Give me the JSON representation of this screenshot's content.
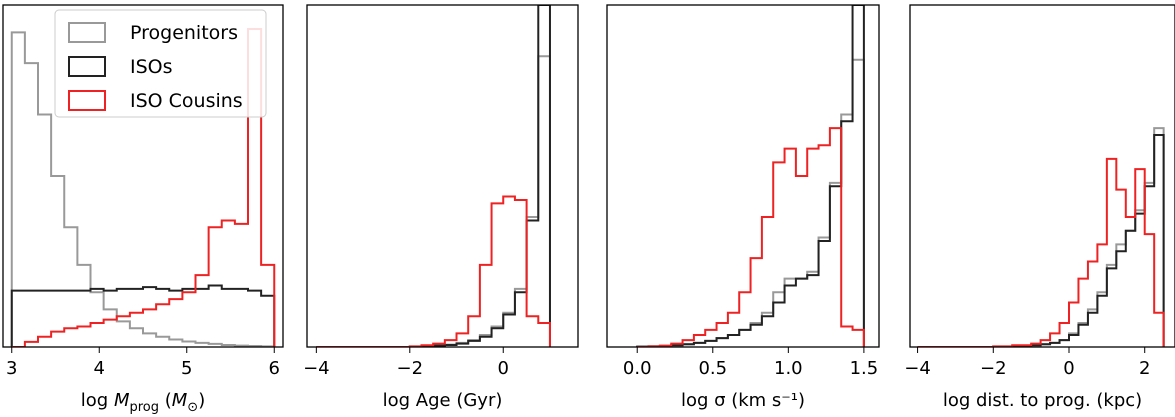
{
  "colors": {
    "progenitors": "#999999",
    "isos": "#222222",
    "cousins": "#ee2222"
  },
  "legend": {
    "entries": [
      {
        "label": "Progenitors",
        "color_key": "progenitors"
      },
      {
        "label": "ISOs",
        "color_key": "isos"
      },
      {
        "label": "ISO Cousins",
        "color_key": "cousins"
      }
    ]
  },
  "chart_data": [
    {
      "type": "histogram",
      "xlabel": "log M_prog (M_⊙)",
      "xlim": [
        2.9,
        6.1
      ],
      "ylim": [
        0,
        1.0
      ],
      "xticks": [
        3,
        4,
        5,
        6
      ],
      "y_ticks_shown": false,
      "series": [
        {
          "name": "Progenitors",
          "color_key": "progenitors",
          "edges": [
            3.0,
            3.15,
            3.3,
            3.45,
            3.6,
            3.75,
            3.9,
            4.05,
            4.2,
            4.35,
            4.5,
            4.65,
            4.8,
            4.95,
            5.1,
            5.25,
            5.4,
            5.55,
            5.7,
            5.85,
            6.0
          ],
          "values": [
            0.92,
            0.83,
            0.68,
            0.5,
            0.35,
            0.24,
            0.16,
            0.11,
            0.075,
            0.055,
            0.04,
            0.03,
            0.022,
            0.016,
            0.012,
            0.009,
            0.006,
            0.004,
            0.003,
            0.002
          ]
        },
        {
          "name": "ISOs",
          "color_key": "isos",
          "edges": [
            3.0,
            3.15,
            3.3,
            3.45,
            3.6,
            3.75,
            3.9,
            4.05,
            4.2,
            4.35,
            4.5,
            4.65,
            4.8,
            4.95,
            5.1,
            5.25,
            5.4,
            5.55,
            5.7,
            5.85,
            6.0
          ],
          "values": [
            0.165,
            0.165,
            0.165,
            0.165,
            0.165,
            0.165,
            0.17,
            0.165,
            0.17,
            0.17,
            0.175,
            0.17,
            0.165,
            0.17,
            0.17,
            0.18,
            0.17,
            0.17,
            0.165,
            0.15
          ]
        },
        {
          "name": "ISO Cousins",
          "color_key": "cousins",
          "edges": [
            3.0,
            3.15,
            3.3,
            3.45,
            3.6,
            3.75,
            3.9,
            4.05,
            4.2,
            4.35,
            4.5,
            4.65,
            4.8,
            4.95,
            5.1,
            5.25,
            5.4,
            5.55,
            5.7,
            5.85,
            6.0
          ],
          "values": [
            0.0,
            0.015,
            0.03,
            0.045,
            0.055,
            0.06,
            0.07,
            0.08,
            0.09,
            0.1,
            0.11,
            0.125,
            0.14,
            0.16,
            0.21,
            0.35,
            0.37,
            0.36,
            0.93,
            0.24
          ]
        }
      ]
    },
    {
      "type": "histogram",
      "xlabel": "log Age (Gyr)",
      "xlim": [
        -4.2,
        1.6
      ],
      "ylim": [
        0,
        1.0
      ],
      "xticks": [
        -4,
        -2,
        0
      ],
      "y_ticks_shown": false,
      "series": [
        {
          "name": "Progenitors",
          "color_key": "progenitors",
          "edges": [
            -4.0,
            -3.75,
            -3.5,
            -3.25,
            -3.0,
            -2.75,
            -2.5,
            -2.25,
            -2.0,
            -1.75,
            -1.5,
            -1.25,
            -1.0,
            -0.75,
            -0.5,
            -0.25,
            0.0,
            0.25,
            0.5,
            0.75,
            1.0
          ],
          "values": [
            0,
            0,
            0,
            0,
            0,
            0,
            0,
            0,
            0.001,
            0.002,
            0.004,
            0.007,
            0.012,
            0.02,
            0.035,
            0.06,
            0.1,
            0.17,
            0.38,
            0.85
          ]
        },
        {
          "name": "ISOs",
          "color_key": "isos",
          "edges": [
            -4.0,
            -3.75,
            -3.5,
            -3.25,
            -3.0,
            -2.75,
            -2.5,
            -2.25,
            -2.0,
            -1.75,
            -1.5,
            -1.25,
            -1.0,
            -0.75,
            -0.5,
            -0.25,
            0.0,
            0.25,
            0.5,
            0.75,
            1.0
          ],
          "values": [
            0,
            0,
            0,
            0,
            0,
            0,
            0,
            0,
            0.001,
            0.002,
            0.004,
            0.006,
            0.01,
            0.018,
            0.03,
            0.055,
            0.095,
            0.16,
            0.37,
            1.0
          ]
        },
        {
          "name": "ISO Cousins",
          "color_key": "cousins",
          "edges": [
            -4.0,
            -3.75,
            -3.5,
            -3.25,
            -3.0,
            -2.75,
            -2.5,
            -2.25,
            -2.0,
            -1.75,
            -1.5,
            -1.25,
            -1.0,
            -0.75,
            -0.5,
            -0.25,
            0.0,
            0.25,
            0.5,
            0.75,
            1.0
          ],
          "values": [
            0,
            0,
            0,
            0,
            0,
            0,
            0,
            0,
            0.002,
            0.005,
            0.01,
            0.02,
            0.04,
            0.09,
            0.24,
            0.42,
            0.44,
            0.43,
            0.09,
            0.07
          ]
        }
      ]
    },
    {
      "type": "histogram",
      "xlabel": "log σ (km s⁻¹)",
      "xlim": [
        -0.2,
        1.6
      ],
      "ylim": [
        0,
        1.0
      ],
      "xticks": [
        0.0,
        0.5,
        1.0,
        1.5
      ],
      "y_ticks_shown": false,
      "series": [
        {
          "name": "Progenitors",
          "color_key": "progenitors",
          "edges": [
            0.0,
            0.075,
            0.15,
            0.225,
            0.3,
            0.375,
            0.45,
            0.525,
            0.6,
            0.675,
            0.75,
            0.825,
            0.9,
            0.975,
            1.05,
            1.125,
            1.2,
            1.275,
            1.35,
            1.425,
            1.5
          ],
          "values": [
            0.001,
            0.002,
            0.003,
            0.005,
            0.008,
            0.012,
            0.018,
            0.026,
            0.035,
            0.05,
            0.07,
            0.1,
            0.16,
            0.2,
            0.2,
            0.22,
            0.32,
            0.48,
            0.68,
            0.84
          ]
        },
        {
          "name": "ISOs",
          "color_key": "isos",
          "edges": [
            0.0,
            0.075,
            0.15,
            0.225,
            0.3,
            0.375,
            0.45,
            0.525,
            0.6,
            0.675,
            0.75,
            0.825,
            0.9,
            0.975,
            1.05,
            1.125,
            1.2,
            1.275,
            1.35,
            1.425,
            1.5
          ],
          "values": [
            0.001,
            0.002,
            0.003,
            0.005,
            0.008,
            0.012,
            0.018,
            0.026,
            0.035,
            0.05,
            0.065,
            0.09,
            0.13,
            0.18,
            0.2,
            0.21,
            0.31,
            0.47,
            0.66,
            1.0
          ]
        },
        {
          "name": "ISO Cousins",
          "color_key": "cousins",
          "edges": [
            0.0,
            0.075,
            0.15,
            0.225,
            0.3,
            0.375,
            0.45,
            0.525,
            0.6,
            0.675,
            0.75,
            0.825,
            0.9,
            0.975,
            1.05,
            1.125,
            1.2,
            1.275,
            1.35,
            1.425,
            1.5
          ],
          "values": [
            0.0,
            0.002,
            0.004,
            0.01,
            0.02,
            0.035,
            0.05,
            0.07,
            0.1,
            0.16,
            0.26,
            0.38,
            0.54,
            0.58,
            0.5,
            0.58,
            0.59,
            0.64,
            0.06,
            0.05
          ]
        }
      ]
    },
    {
      "type": "histogram",
      "xlabel": "log dist. to prog. (kpc)",
      "xlim": [
        -4.2,
        2.8
      ],
      "ylim": [
        0,
        1.0
      ],
      "xticks": [
        -4,
        -2,
        0,
        2
      ],
      "y_ticks_shown": false,
      "series": [
        {
          "name": "Progenitors",
          "color_key": "progenitors",
          "edges": [
            -4.0,
            -3.5,
            -3.0,
            -2.5,
            -2.0,
            -1.5,
            -1.0,
            -0.75,
            -0.5,
            -0.25,
            0.0,
            0.25,
            0.5,
            0.75,
            1.0,
            1.25,
            1.5,
            1.75,
            2.0,
            2.25,
            2.5
          ],
          "values": [
            0,
            0,
            0,
            0,
            0.001,
            0.002,
            0.005,
            0.008,
            0.012,
            0.02,
            0.04,
            0.07,
            0.11,
            0.16,
            0.24,
            0.3,
            0.34,
            0.4,
            0.48,
            0.64
          ]
        },
        {
          "name": "ISOs",
          "color_key": "isos",
          "edges": [
            -4.0,
            -3.5,
            -3.0,
            -2.5,
            -2.0,
            -1.5,
            -1.0,
            -0.75,
            -0.5,
            -0.25,
            0.0,
            0.25,
            0.5,
            0.75,
            1.0,
            1.25,
            1.5,
            1.75,
            2.0,
            2.25,
            2.5
          ],
          "values": [
            0,
            0,
            0,
            0,
            0.001,
            0.002,
            0.005,
            0.008,
            0.012,
            0.02,
            0.035,
            0.065,
            0.1,
            0.15,
            0.23,
            0.28,
            0.34,
            0.39,
            0.47,
            0.62
          ]
        },
        {
          "name": "ISO Cousins",
          "color_key": "cousins",
          "edges": [
            -4.0,
            -3.5,
            -3.0,
            -2.5,
            -2.0,
            -1.5,
            -1.0,
            -0.75,
            -0.5,
            -0.25,
            0.0,
            0.25,
            0.5,
            0.75,
            1.0,
            1.25,
            1.5,
            1.75,
            2.0,
            2.25,
            2.5
          ],
          "values": [
            0,
            0,
            0,
            0,
            0.002,
            0.005,
            0.01,
            0.02,
            0.04,
            0.07,
            0.13,
            0.2,
            0.25,
            0.3,
            0.55,
            0.46,
            0.38,
            0.52,
            0.33,
            0.1
          ]
        }
      ]
    }
  ]
}
